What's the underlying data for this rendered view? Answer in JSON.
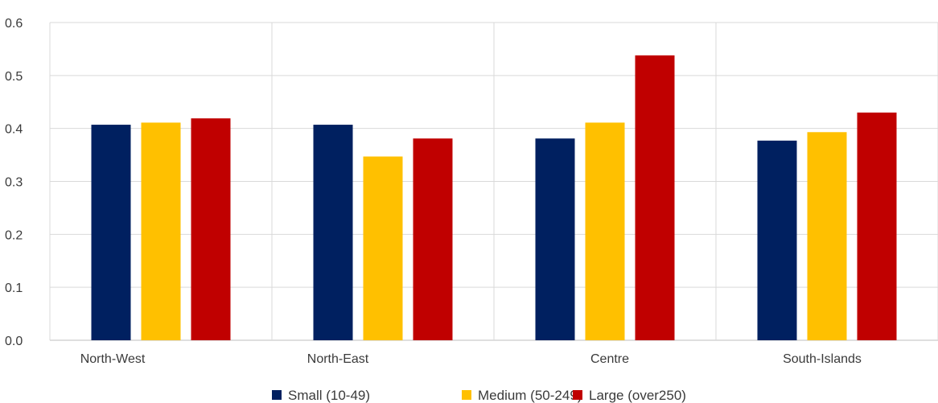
{
  "chart_data": {
    "type": "bar",
    "categories": [
      "North-West",
      "North-East",
      "Centre",
      "South-Islands"
    ],
    "series": [
      {
        "name": "Small (10-49)",
        "color": "#002060",
        "values": [
          0.407,
          0.407,
          0.381,
          0.377
        ]
      },
      {
        "name": "Medium (50-249)",
        "color": "#FFC000",
        "values": [
          0.411,
          0.347,
          0.411,
          0.393
        ]
      },
      {
        "name": "Large (over250)",
        "color": "#C00000",
        "values": [
          0.419,
          0.381,
          0.538,
          0.43
        ]
      }
    ],
    "y_ticks": [
      "0.0",
      "0.1",
      "0.2",
      "0.3",
      "0.4",
      "0.5",
      "0.6"
    ],
    "ylim": [
      0,
      0.6
    ],
    "grid": true,
    "legend_position": "bottom",
    "title": "",
    "xlabel": "",
    "ylabel": ""
  }
}
